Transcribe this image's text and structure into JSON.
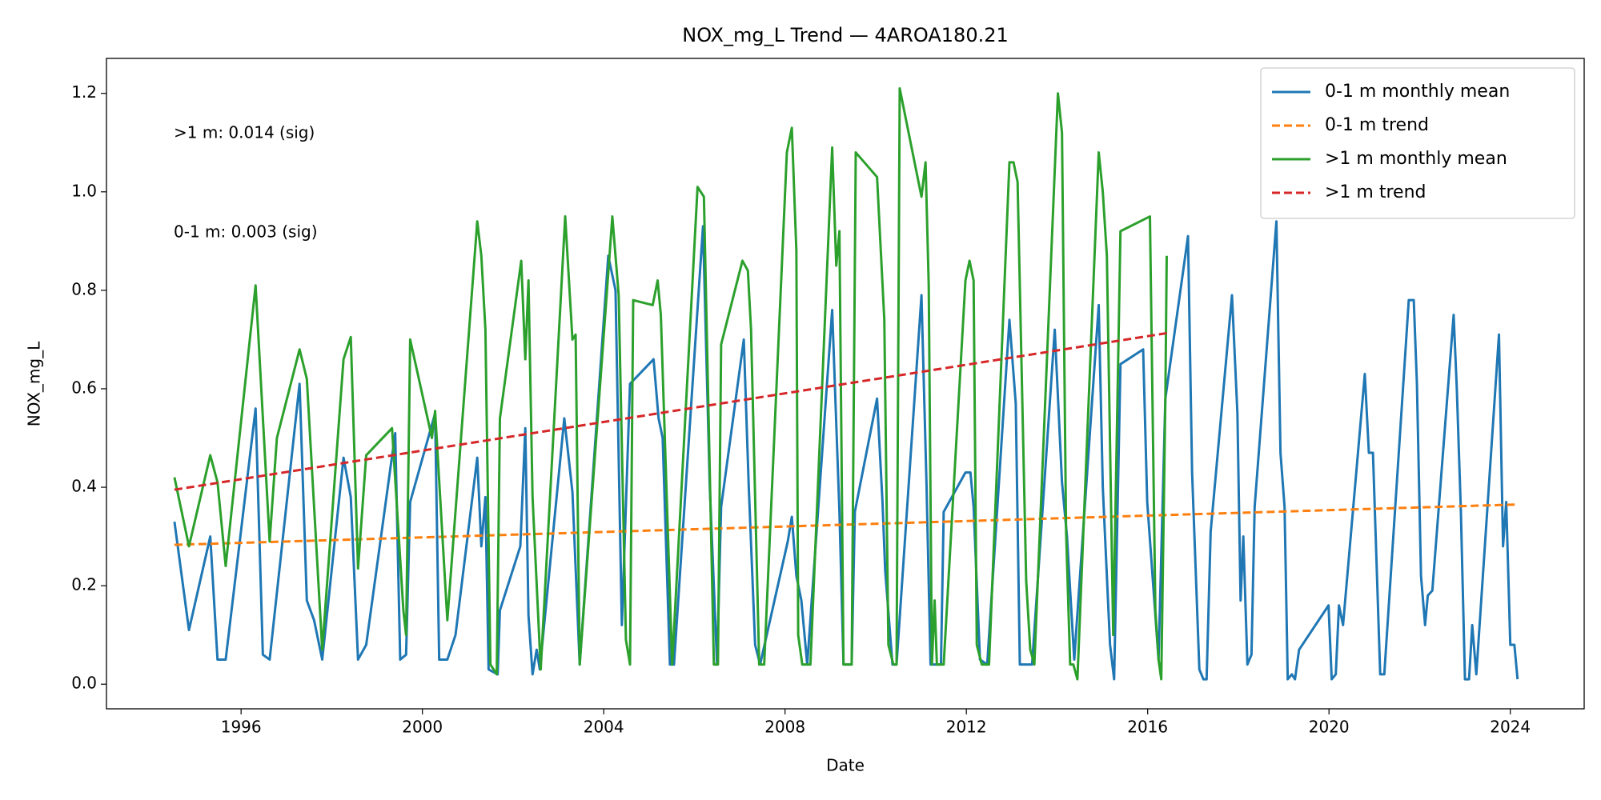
{
  "chart_data": {
    "type": "line",
    "title": "NOX_mg_L Trend — 4AROA180.21",
    "xlabel": "Date",
    "ylabel": "NOX_mg_L",
    "annotations": [
      ">1 m: 0.014 (sig)",
      "0-1 m: 0.003 (sig)"
    ],
    "xlim": [
      1993.03,
      2025.63
    ],
    "ylim": [
      -0.05,
      1.271
    ],
    "xticks": [
      1996,
      2000,
      2004,
      2008,
      2012,
      2016,
      2020,
      2024
    ],
    "yticks": [
      {
        "value": 0,
        "label": "0.0"
      },
      0.2,
      0.4,
      0.6,
      0.8,
      {
        "value": 1,
        "label": "1.0"
      },
      1.2
    ],
    "legend": "upper right",
    "series": [
      {
        "name": "0-1 m monthly mean",
        "color": "#1f77b4",
        "linestyle": "solid",
        "x": [
          1994.53,
          1994.85,
          1995.32,
          1995.48,
          1995.66,
          1996.32,
          1996.48,
          1996.63,
          1997.29,
          1997.45,
          1997.61,
          1997.79,
          1998.26,
          1998.42,
          1998.58,
          1998.76,
          1999.4,
          1999.51,
          1999.64,
          1999.73,
          2000.28,
          2000.37,
          2000.55,
          2000.73,
          2001.21,
          2001.3,
          2001.39,
          2001.46,
          2001.66,
          2001.71,
          2002.16,
          2002.27,
          2002.34,
          2002.43,
          2002.52,
          2002.59,
          2003.13,
          2003.31,
          2003.47,
          2004.1,
          2004.26,
          2004.4,
          2004.58,
          2005.1,
          2005.21,
          2005.3,
          2005.46,
          2005.55,
          2006.19,
          2006.34,
          2006.5,
          2006.59,
          2007.09,
          2007.2,
          2007.34,
          2007.45,
          2008.06,
          2008.15,
          2008.25,
          2008.36,
          2008.49,
          2009.04,
          2009.2,
          2009.29,
          2009.47,
          2009.54,
          2010.03,
          2010.15,
          2010.21,
          2010.37,
          2010.46,
          2011.01,
          2011.12,
          2011.21,
          2011.35,
          2011.44,
          2011.5,
          2011.98,
          2012.09,
          2012.16,
          2012.3,
          2012.46,
          2012.95,
          2013.09,
          2013.18,
          2013.45,
          2013.95,
          2014.11,
          2014.22,
          2014.38,
          2014.92,
          2015.01,
          2015.17,
          2015.26,
          2015.4,
          2015.9,
          2015.99,
          2016.24,
          2016.39,
          2016.89,
          2016.98,
          2017.14,
          2017.23,
          2017.3,
          2017.39,
          2017.86,
          2017.98,
          2018.05,
          2018.11,
          2018.2,
          2018.29,
          2018.36,
          2018.84,
          2018.93,
          2019.02,
          2019.09,
          2019.18,
          2019.25,
          2019.34,
          2019.99,
          2020.06,
          2020.15,
          2020.22,
          2020.31,
          2020.79,
          2020.88,
          2020.97,
          2021.13,
          2021.22,
          2021.76,
          2021.87,
          2021.94,
          2022.03,
          2022.12,
          2022.18,
          2022.28,
          2022.75,
          2022.82,
          2022.91,
          2023.0,
          2023.09,
          2023.16,
          2023.25,
          2023.75,
          2023.84,
          2023.91,
          2024.0,
          2024.09,
          2024.16
        ],
        "values": [
          0.33,
          0.11,
          0.3,
          0.05,
          0.05,
          0.56,
          0.06,
          0.05,
          0.61,
          0.17,
          0.13,
          0.05,
          0.46,
          0.38,
          0.05,
          0.08,
          0.51,
          0.05,
          0.06,
          0.37,
          0.55,
          0.05,
          0.05,
          0.1,
          0.46,
          0.28,
          0.38,
          0.03,
          0.02,
          0.15,
          0.28,
          0.52,
          0.14,
          0.02,
          0.07,
          0.03,
          0.54,
          0.39,
          0.04,
          0.87,
          0.8,
          0.12,
          0.61,
          0.66,
          0.54,
          0.5,
          0.04,
          0.04,
          0.93,
          0.4,
          0.04,
          0.36,
          0.7,
          0.4,
          0.08,
          0.04,
          0.29,
          0.34,
          0.22,
          0.17,
          0.04,
          0.76,
          0.35,
          0.04,
          0.04,
          0.35,
          0.58,
          0.37,
          0.23,
          0.04,
          0.04,
          0.79,
          0.41,
          0.04,
          0.04,
          0.04,
          0.35,
          0.43,
          0.43,
          0.36,
          0.05,
          0.04,
          0.74,
          0.57,
          0.04,
          0.04,
          0.72,
          0.41,
          0.3,
          0.05,
          0.77,
          0.4,
          0.08,
          0.01,
          0.65,
          0.68,
          0.37,
          0.05,
          0.58,
          0.91,
          0.43,
          0.03,
          0.01,
          0.01,
          0.31,
          0.79,
          0.55,
          0.17,
          0.3,
          0.04,
          0.06,
          0.36,
          0.94,
          0.47,
          0.36,
          0.01,
          0.02,
          0.01,
          0.07,
          0.16,
          0.01,
          0.02,
          0.16,
          0.12,
          0.63,
          0.47,
          0.47,
          0.02,
          0.02,
          0.78,
          0.78,
          0.61,
          0.22,
          0.12,
          0.18,
          0.19,
          0.75,
          0.6,
          0.35,
          0.01,
          0.01,
          0.12,
          0.02,
          0.71,
          0.28,
          0.37,
          0.08,
          0.08,
          0.01
        ]
      },
      {
        "name": "0-1 m trend",
        "color": "#ff7f0e",
        "linestyle": "dashed",
        "x": [
          1994.53,
          2024.16
        ],
        "values": [
          0.283,
          0.365
        ]
      },
      {
        "name": ">1 m monthly mean",
        "color": "#2ca02c",
        "linestyle": "solid",
        "x": [
          1994.53,
          1994.85,
          1995.32,
          1995.48,
          1995.66,
          1996.32,
          1996.63,
          1996.79,
          1997.29,
          1997.45,
          1997.79,
          1998.26,
          1998.42,
          1998.58,
          1998.76,
          1999.33,
          1999.58,
          1999.64,
          1999.73,
          2000.21,
          2000.28,
          2000.55,
          2001.21,
          2001.3,
          2001.39,
          2001.5,
          2001.64,
          2001.71,
          2002.18,
          2002.27,
          2002.34,
          2002.43,
          2002.61,
          2003.15,
          2003.31,
          2003.38,
          2003.47,
          2004.12,
          2004.19,
          2004.33,
          2004.49,
          2004.58,
          2004.65,
          2005.08,
          2005.19,
          2005.26,
          2005.51,
          2006.07,
          2006.21,
          2006.43,
          2006.52,
          2006.59,
          2007.06,
          2007.18,
          2007.25,
          2007.43,
          2007.54,
          2008.04,
          2008.15,
          2008.25,
          2008.29,
          2008.38,
          2008.56,
          2009.04,
          2009.13,
          2009.2,
          2009.29,
          2009.47,
          2009.56,
          2010.03,
          2010.19,
          2010.28,
          2010.39,
          2010.46,
          2010.53,
          2011.01,
          2011.1,
          2011.17,
          2011.24,
          2011.3,
          2011.35,
          2011.5,
          2011.98,
          2012.07,
          2012.16,
          2012.23,
          2012.34,
          2012.5,
          2012.95,
          2013.04,
          2013.13,
          2013.32,
          2013.41,
          2013.5,
          2014.02,
          2014.11,
          2014.2,
          2014.29,
          2014.36,
          2014.45,
          2014.92,
          2015.01,
          2015.1,
          2015.24,
          2015.4,
          2016.05,
          2016.17,
          2016.24,
          2016.3,
          2016.39,
          2016.42
        ],
        "values": [
          0.42,
          0.28,
          0.465,
          0.41,
          0.24,
          0.81,
          0.29,
          0.5,
          0.68,
          0.62,
          0.07,
          0.66,
          0.705,
          0.235,
          0.465,
          0.52,
          0.15,
          0.1,
          0.7,
          0.5,
          0.555,
          0.13,
          0.94,
          0.87,
          0.72,
          0.04,
          0.02,
          0.54,
          0.86,
          0.66,
          0.82,
          0.38,
          0.03,
          0.95,
          0.7,
          0.71,
          0.04,
          0.86,
          0.95,
          0.79,
          0.09,
          0.04,
          0.78,
          0.77,
          0.82,
          0.75,
          0.04,
          1.01,
          0.99,
          0.04,
          0.04,
          0.69,
          0.86,
          0.84,
          0.72,
          0.04,
          0.04,
          1.08,
          1.13,
          0.88,
          0.1,
          0.04,
          0.04,
          1.09,
          0.85,
          0.92,
          0.04,
          0.04,
          1.08,
          1.03,
          0.74,
          0.08,
          0.04,
          0.04,
          1.21,
          0.99,
          1.06,
          0.81,
          0.04,
          0.17,
          0.04,
          0.04,
          0.82,
          0.86,
          0.82,
          0.08,
          0.04,
          0.04,
          1.06,
          1.06,
          1.02,
          0.21,
          0.07,
          0.04,
          1.2,
          1.12,
          0.31,
          0.04,
          0.04,
          0.01,
          1.08,
          1.0,
          0.87,
          0.1,
          0.92,
          0.95,
          0.15,
          0.05,
          0.01,
          0.58,
          0.87
        ]
      },
      {
        "name": ">1 m trend",
        "color": "#d62728",
        "linestyle": "dashed",
        "x": [
          1994.53,
          2016.42
        ],
        "values": [
          0.395,
          0.713
        ]
      }
    ]
  }
}
